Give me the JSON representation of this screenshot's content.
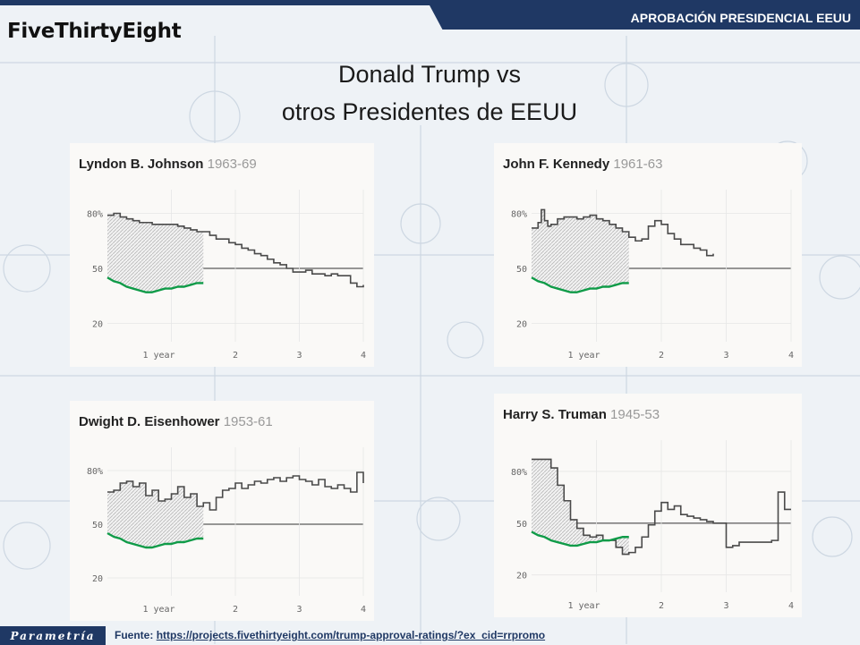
{
  "header": {
    "section_title": "APROBACIÓN PRESIDENCIAL EEUU"
  },
  "logo": {
    "text": "FiveThirtyEight"
  },
  "slide": {
    "title_line1": "Donald Trump vs",
    "title_line2": "otros Presidentes de EEUU"
  },
  "footer": {
    "brand": "Parametría",
    "source_label": "Fuente:",
    "source_url": "https://projects.fivethirtyeight.com/trump-approval-ratings/?ex_cid=rrpromo"
  },
  "colors": {
    "trump": "#0f9b48",
    "president": "#4a4a4a",
    "baseline": "#333333",
    "brand": "#1f3864"
  },
  "chart_data": [
    {
      "type": "line",
      "president": "Lyndon B. Johnson",
      "years": "1963-69",
      "y_ticks": [
        "80%",
        "50",
        "20"
      ],
      "x_ticks": [
        "1 year",
        "2",
        "3",
        "4"
      ],
      "ylim": [
        10,
        90
      ],
      "xlim": [
        0,
        4
      ],
      "series": [
        {
          "name": "Lyndon B. Johnson",
          "x": [
            0,
            0.1,
            0.2,
            0.3,
            0.4,
            0.5,
            0.7,
            0.9,
            1.0,
            1.1,
            1.2,
            1.3,
            1.4,
            1.5,
            1.6,
            1.7,
            1.8,
            1.9,
            2.0,
            2.1,
            2.2,
            2.3,
            2.4,
            2.5,
            2.6,
            2.7,
            2.8,
            2.9,
            3.0,
            3.1,
            3.2,
            3.3,
            3.4,
            3.5,
            3.6,
            3.7,
            3.8,
            3.9,
            4.0
          ],
          "y": [
            79,
            80,
            78,
            77,
            76,
            75,
            74,
            74,
            74,
            73,
            72,
            71,
            70,
            70,
            68,
            66,
            66,
            64,
            63,
            61,
            60,
            58,
            57,
            55,
            53,
            52,
            50,
            48,
            48,
            49,
            47,
            47,
            46,
            47,
            46,
            46,
            42,
            40,
            41
          ]
        },
        {
          "name": "Donald Trump",
          "x": [
            0,
            0.1,
            0.2,
            0.3,
            0.4,
            0.5,
            0.6,
            0.7,
            0.8,
            0.9,
            1.0,
            1.1,
            1.2,
            1.3,
            1.4,
            1.5
          ],
          "y": [
            45,
            43,
            42,
            40,
            39,
            38,
            37,
            37,
            38,
            39,
            39,
            40,
            40,
            41,
            42,
            42
          ]
        }
      ]
    },
    {
      "type": "line",
      "president": "John F. Kennedy",
      "years": "1961-63",
      "y_ticks": [
        "80%",
        "50",
        "20"
      ],
      "x_ticks": [
        "1 year",
        "2",
        "3",
        "4"
      ],
      "ylim": [
        10,
        90
      ],
      "xlim": [
        0,
        4
      ],
      "series": [
        {
          "name": "John F. Kennedy",
          "x": [
            0,
            0.1,
            0.15,
            0.2,
            0.25,
            0.3,
            0.4,
            0.5,
            0.6,
            0.7,
            0.8,
            0.9,
            1.0,
            1.1,
            1.2,
            1.3,
            1.4,
            1.5,
            1.6,
            1.7,
            1.8,
            1.9,
            2.0,
            2.1,
            2.2,
            2.3,
            2.4,
            2.5,
            2.6,
            2.7,
            2.8
          ],
          "y": [
            72,
            75,
            82,
            76,
            73,
            74,
            77,
            78,
            78,
            77,
            78,
            79,
            77,
            76,
            74,
            72,
            70,
            67,
            65,
            66,
            73,
            76,
            74,
            69,
            66,
            63,
            63,
            61,
            60,
            57,
            58
          ]
        },
        {
          "name": "Donald Trump",
          "x": [
            0,
            0.1,
            0.2,
            0.3,
            0.4,
            0.5,
            0.6,
            0.7,
            0.8,
            0.9,
            1.0,
            1.1,
            1.2,
            1.3,
            1.4,
            1.5
          ],
          "y": [
            45,
            43,
            42,
            40,
            39,
            38,
            37,
            37,
            38,
            39,
            39,
            40,
            40,
            41,
            42,
            42
          ]
        }
      ]
    },
    {
      "type": "line",
      "president": "Dwight D. Eisenhower",
      "years": "1953-61",
      "y_ticks": [
        "80%",
        "50",
        "20"
      ],
      "x_ticks": [
        "1 year",
        "2",
        "3",
        "4"
      ],
      "ylim": [
        10,
        90
      ],
      "xlim": [
        0,
        4
      ],
      "series": [
        {
          "name": "Dwight D. Eisenhower",
          "x": [
            0,
            0.1,
            0.2,
            0.3,
            0.4,
            0.5,
            0.6,
            0.7,
            0.8,
            0.9,
            1.0,
            1.1,
            1.2,
            1.3,
            1.4,
            1.5,
            1.6,
            1.7,
            1.8,
            1.9,
            2.0,
            2.1,
            2.2,
            2.3,
            2.4,
            2.5,
            2.6,
            2.7,
            2.8,
            2.9,
            3.0,
            3.1,
            3.2,
            3.3,
            3.4,
            3.5,
            3.6,
            3.7,
            3.8,
            3.9,
            4.0
          ],
          "y": [
            68,
            69,
            73,
            74,
            71,
            73,
            66,
            69,
            63,
            64,
            67,
            71,
            65,
            67,
            60,
            62,
            58,
            65,
            69,
            70,
            73,
            70,
            72,
            74,
            73,
            75,
            76,
            74,
            76,
            77,
            75,
            74,
            72,
            75,
            71,
            70,
            72,
            70,
            68,
            79,
            73
          ]
        },
        {
          "name": "Donald Trump",
          "x": [
            0,
            0.1,
            0.2,
            0.3,
            0.4,
            0.5,
            0.6,
            0.7,
            0.8,
            0.9,
            1.0,
            1.1,
            1.2,
            1.3,
            1.4,
            1.5
          ],
          "y": [
            45,
            43,
            42,
            40,
            39,
            38,
            37,
            37,
            38,
            39,
            39,
            40,
            40,
            41,
            42,
            42
          ]
        }
      ]
    },
    {
      "type": "line",
      "president": "Harry S. Truman",
      "years": "1945-53",
      "y_ticks": [
        "80%",
        "50",
        "20"
      ],
      "x_ticks": [
        "1 year",
        "2",
        "3",
        "4"
      ],
      "ylim": [
        10,
        95
      ],
      "xlim": [
        0,
        4
      ],
      "series": [
        {
          "name": "Harry S. Truman",
          "x": [
            0,
            0.1,
            0.3,
            0.4,
            0.5,
            0.6,
            0.7,
            0.8,
            0.9,
            1.0,
            1.1,
            1.3,
            1.4,
            1.5,
            1.6,
            1.7,
            1.8,
            1.9,
            2.0,
            2.1,
            2.2,
            2.3,
            2.4,
            2.5,
            2.6,
            2.7,
            2.8,
            2.9,
            3.0,
            3.1,
            3.2,
            3.3,
            3.4,
            3.5,
            3.6,
            3.7,
            3.8,
            3.9,
            4.0
          ],
          "y": [
            87,
            87,
            82,
            72,
            63,
            52,
            47,
            43,
            42,
            43,
            40,
            36,
            32,
            33,
            36,
            42,
            49,
            57,
            62,
            58,
            60,
            55,
            54,
            53,
            52,
            51,
            50,
            50,
            36,
            37,
            39,
            39,
            39,
            39,
            39,
            40,
            68,
            58,
            58
          ]
        },
        {
          "name": "Donald Trump",
          "x": [
            0,
            0.1,
            0.2,
            0.3,
            0.4,
            0.5,
            0.6,
            0.7,
            0.8,
            0.9,
            1.0,
            1.1,
            1.2,
            1.3,
            1.4,
            1.5
          ],
          "y": [
            45,
            43,
            42,
            40,
            39,
            38,
            37,
            37,
            38,
            39,
            39,
            40,
            40,
            41,
            42,
            42
          ]
        }
      ]
    }
  ]
}
